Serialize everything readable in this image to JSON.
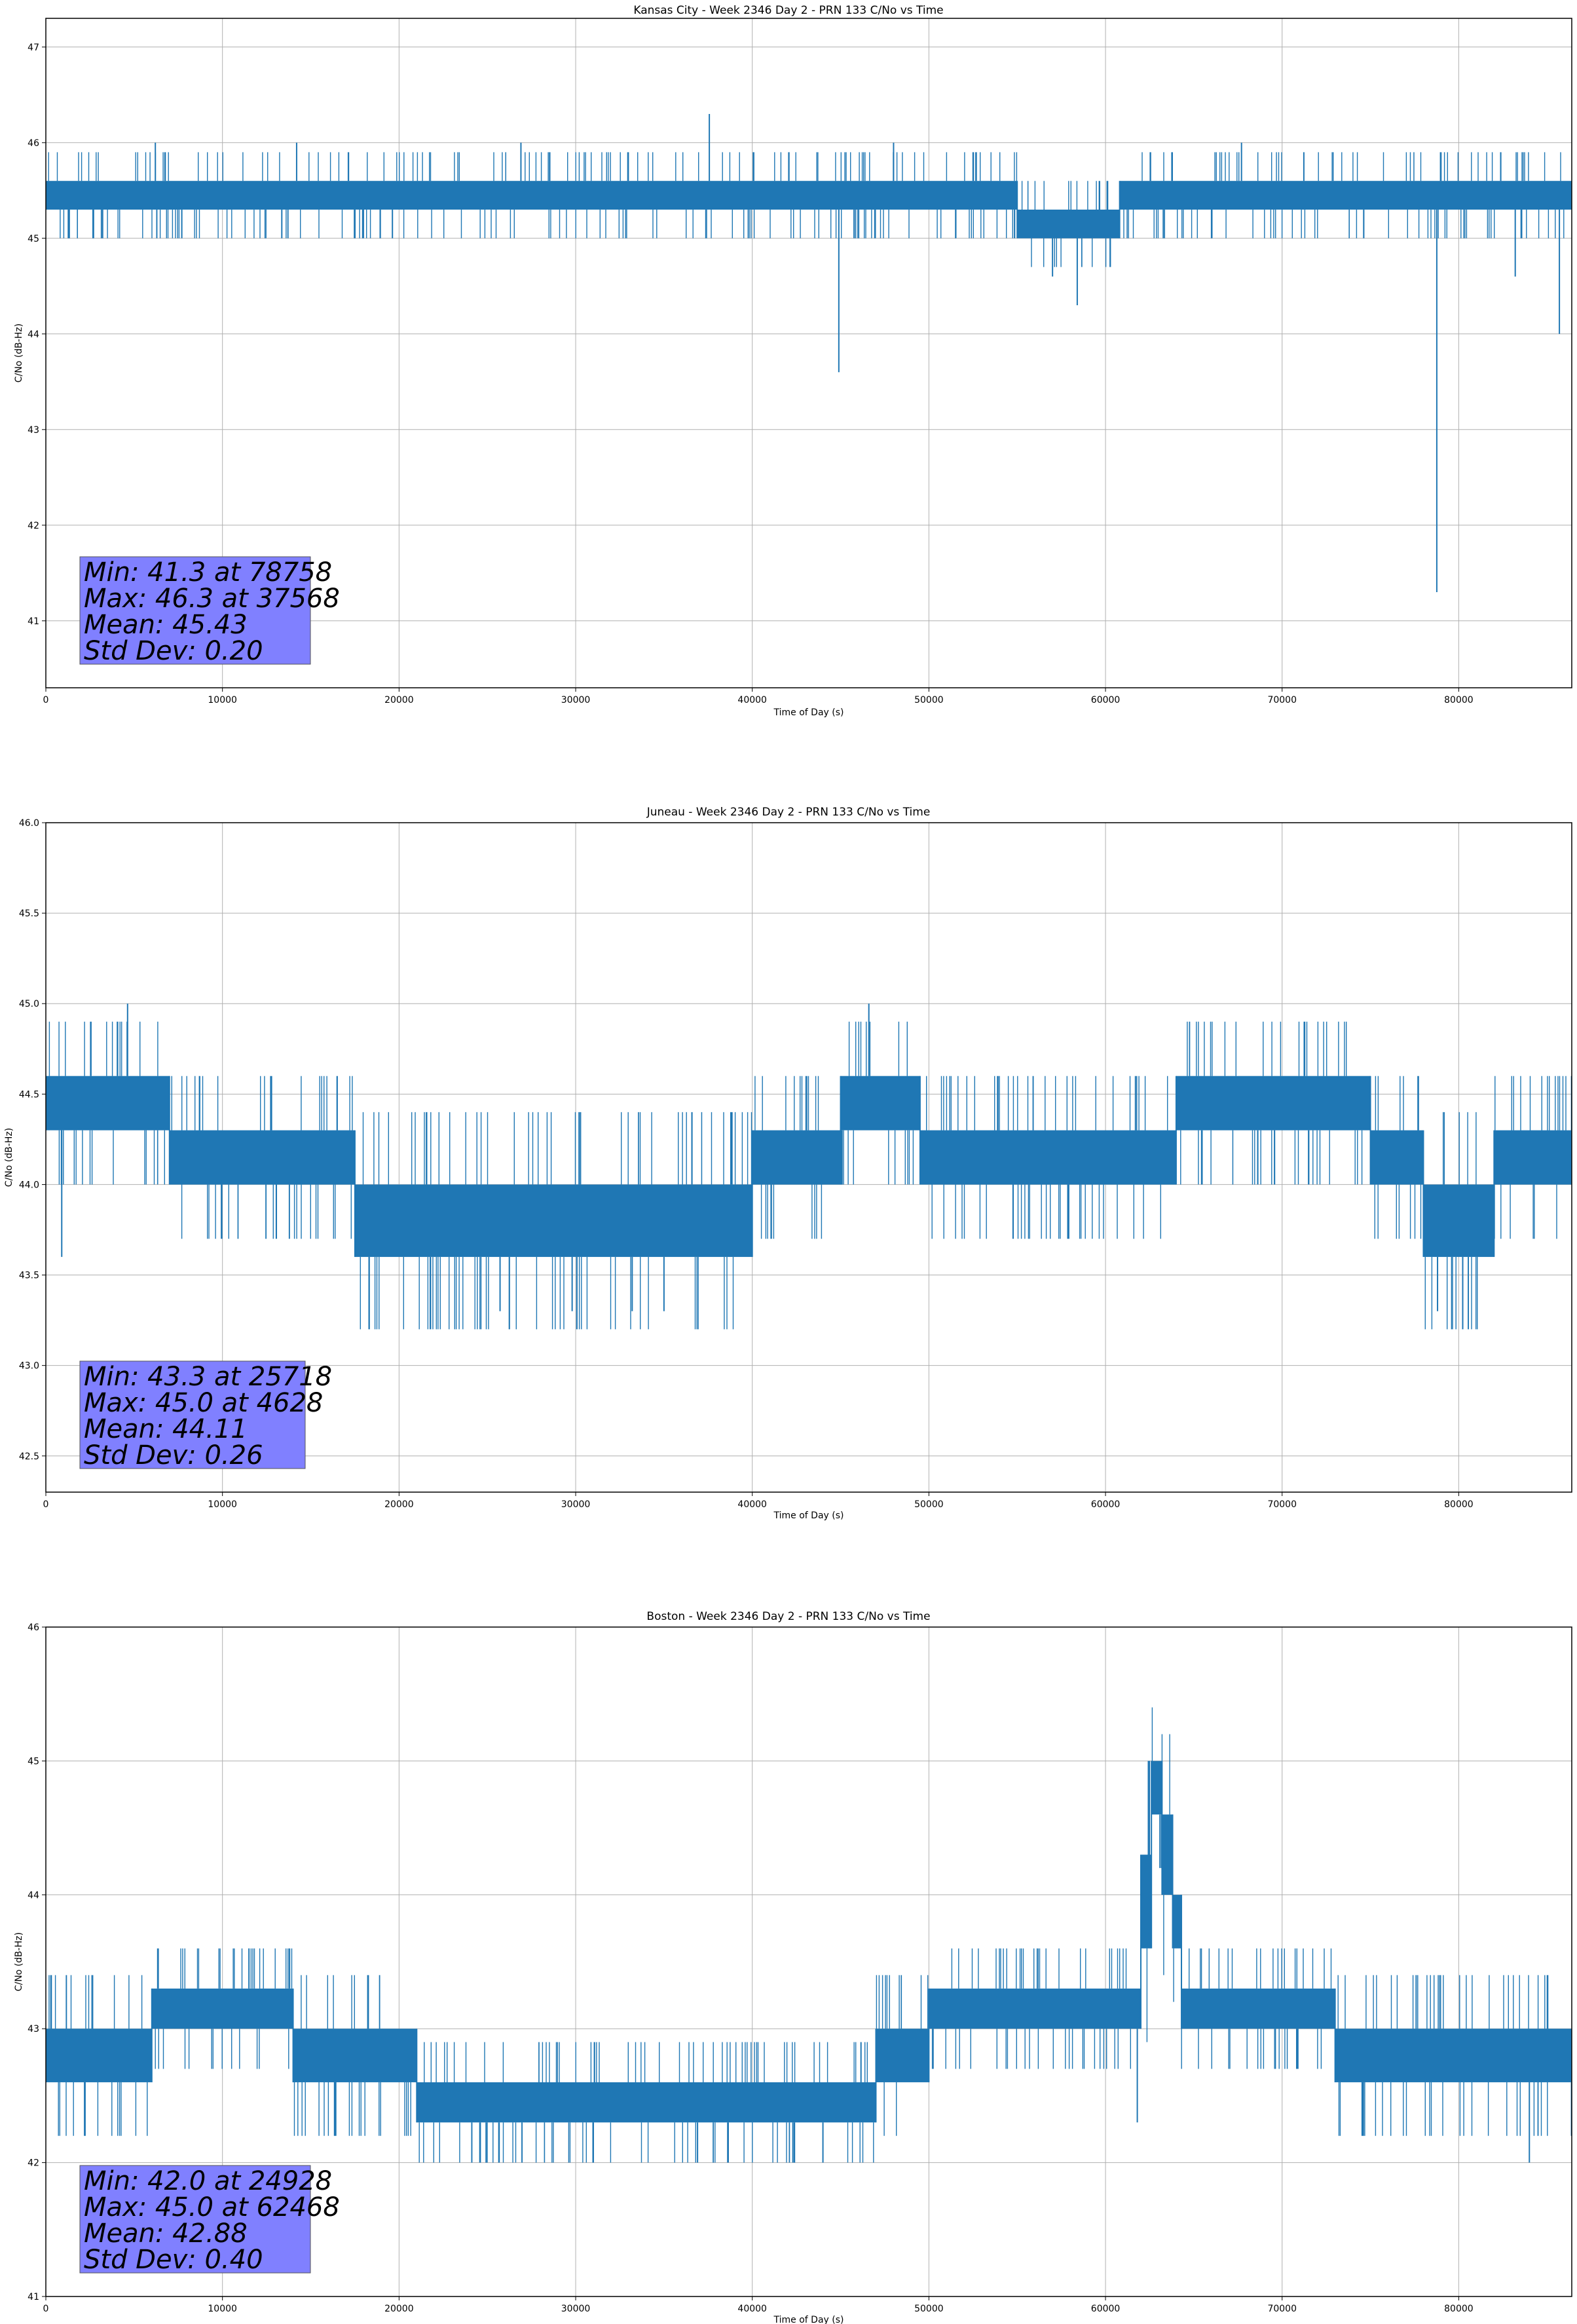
{
  "chart_data": [
    {
      "type": "line",
      "title": "Kansas City - Week 2346 Day 2 - PRN 133 C/No vs Time",
      "xlabel": "Time of Day (s)",
      "ylabel": "C/No (dB-Hz)",
      "xlim": [
        0,
        86400
      ],
      "ylim": [
        40.3,
        47.3
      ],
      "xticks": [
        0,
        10000,
        20000,
        30000,
        40000,
        50000,
        60000,
        70000,
        80000
      ],
      "yticks": [
        41,
        42,
        43,
        44,
        45,
        46,
        47
      ],
      "grid": true,
      "color": "#1f77b4",
      "series": {
        "name": "C/No",
        "segments": [
          {
            "x": [
              0,
              55000
            ],
            "lo": 45.3,
            "hi": 45.6
          },
          {
            "x": [
              55000,
              60800
            ],
            "lo": 45.0,
            "hi": 45.3
          },
          {
            "x": [
              60800,
              86400
            ],
            "lo": 45.3,
            "hi": 45.6
          }
        ],
        "spikes": [
          {
            "x": 37568,
            "y": 46.3
          },
          {
            "x": 6200,
            "y": 46.0
          },
          {
            "x": 14200,
            "y": 46.0
          },
          {
            "x": 26900,
            "y": 46.0
          },
          {
            "x": 48000,
            "y": 46.0
          },
          {
            "x": 67700,
            "y": 46.0
          },
          {
            "x": 44900,
            "y": 43.6
          },
          {
            "x": 57000,
            "y": 44.6
          },
          {
            "x": 58400,
            "y": 44.3
          },
          {
            "x": 78758,
            "y": 41.3
          },
          {
            "x": 83200,
            "y": 44.6
          },
          {
            "x": 85700,
            "y": 44.0
          }
        ]
      },
      "stats": [
        "Min: 41.3 at 78758",
        "Max: 46.3 at 37568",
        "Mean: 45.43",
        "Std Dev: 0.20"
      ]
    },
    {
      "type": "line",
      "title": "Juneau - Week 2346 Day 2 - PRN 133 C/No vs Time",
      "xlabel": "Time of Day (s)",
      "ylabel": "C/No (dB-Hz)",
      "xlim": [
        0,
        86400
      ],
      "ylim": [
        42.3,
        46.0
      ],
      "xticks": [
        0,
        10000,
        20000,
        30000,
        40000,
        50000,
        60000,
        70000,
        80000
      ],
      "yticks": [
        42.5,
        43.0,
        43.5,
        44.0,
        44.5,
        45.0,
        45.5,
        46.0
      ],
      "grid": true,
      "color": "#1f77b4",
      "series": {
        "name": "C/No",
        "segments": [
          {
            "x": [
              0,
              7000
            ],
            "lo": 44.3,
            "hi": 44.6
          },
          {
            "x": [
              7000,
              17500
            ],
            "lo": 44.0,
            "hi": 44.3
          },
          {
            "x": [
              17500,
              40000
            ],
            "lo": 43.6,
            "hi": 44.0
          },
          {
            "x": [
              40000,
              45000
            ],
            "lo": 44.0,
            "hi": 44.3
          },
          {
            "x": [
              45000,
              49500
            ],
            "lo": 44.3,
            "hi": 44.6
          },
          {
            "x": [
              49500,
              64000
            ],
            "lo": 44.0,
            "hi": 44.3
          },
          {
            "x": [
              64000,
              75000
            ],
            "lo": 44.3,
            "hi": 44.6
          },
          {
            "x": [
              75000,
              78000
            ],
            "lo": 44.0,
            "hi": 44.3
          },
          {
            "x": [
              78000,
              82000
            ],
            "lo": 43.6,
            "hi": 44.0
          },
          {
            "x": [
              82000,
              86400
            ],
            "lo": 44.0,
            "hi": 44.3
          }
        ],
        "spikes": [
          {
            "x": 4628,
            "y": 45.0
          },
          {
            "x": 46600,
            "y": 45.0
          },
          {
            "x": 25718,
            "y": 43.3
          },
          {
            "x": 29800,
            "y": 43.3
          },
          {
            "x": 33200,
            "y": 43.3
          },
          {
            "x": 35000,
            "y": 43.3
          },
          {
            "x": 78800,
            "y": 43.3
          },
          {
            "x": 900,
            "y": 43.6
          }
        ]
      },
      "stats": [
        "Min: 43.3 at 25718",
        "Max: 45.0 at 4628",
        "Mean: 44.11",
        "Std Dev: 0.26"
      ]
    },
    {
      "type": "line",
      "title": "Boston - Week 2346 Day 2 - PRN 133 C/No vs Time",
      "xlabel": "Time of Day (s)",
      "ylabel": "C/No (dB-Hz)",
      "xlim": [
        0,
        86400
      ],
      "ylim": [
        41.0,
        46.0
      ],
      "xticks": [
        0,
        10000,
        20000,
        30000,
        40000,
        50000,
        60000,
        70000,
        80000
      ],
      "yticks": [
        41,
        42,
        43,
        44,
        45,
        46
      ],
      "grid": true,
      "color": "#1f77b4",
      "series": {
        "name": "C/No",
        "segments": [
          {
            "x": [
              0,
              6000
            ],
            "lo": 42.6,
            "hi": 43.0
          },
          {
            "x": [
              6000,
              14000
            ],
            "lo": 43.0,
            "hi": 43.3
          },
          {
            "x": [
              14000,
              21000
            ],
            "lo": 42.6,
            "hi": 43.0
          },
          {
            "x": [
              21000,
              47000
            ],
            "lo": 42.3,
            "hi": 42.6
          },
          {
            "x": [
              47000,
              50000
            ],
            "lo": 42.6,
            "hi": 43.0
          },
          {
            "x": [
              50000,
              62000
            ],
            "lo": 43.0,
            "hi": 43.3
          },
          {
            "x": [
              62000,
              62600
            ],
            "lo": 43.6,
            "hi": 44.3
          },
          {
            "x": [
              62600,
              63200
            ],
            "lo": 44.6,
            "hi": 45.0
          },
          {
            "x": [
              63200,
              63800
            ],
            "lo": 44.0,
            "hi": 44.6
          },
          {
            "x": [
              63800,
              64300
            ],
            "lo": 43.6,
            "hi": 44.0
          },
          {
            "x": [
              64300,
              73000
            ],
            "lo": 43.0,
            "hi": 43.3
          },
          {
            "x": [
              73000,
              86400
            ],
            "lo": 42.6,
            "hi": 43.0
          }
        ],
        "spikes": [
          {
            "x": 62468,
            "y": 45.0
          },
          {
            "x": 11500,
            "y": 43.6
          },
          {
            "x": 24928,
            "y": 42.0
          },
          {
            "x": 31000,
            "y": 42.0
          },
          {
            "x": 44000,
            "y": 42.0
          },
          {
            "x": 84000,
            "y": 42.0
          },
          {
            "x": 61800,
            "y": 42.3
          }
        ]
      },
      "stats": [
        "Min: 42.0 at 24928",
        "Max: 45.0 at 62468",
        "Mean: 42.88",
        "Std Dev: 0.40"
      ]
    }
  ]
}
